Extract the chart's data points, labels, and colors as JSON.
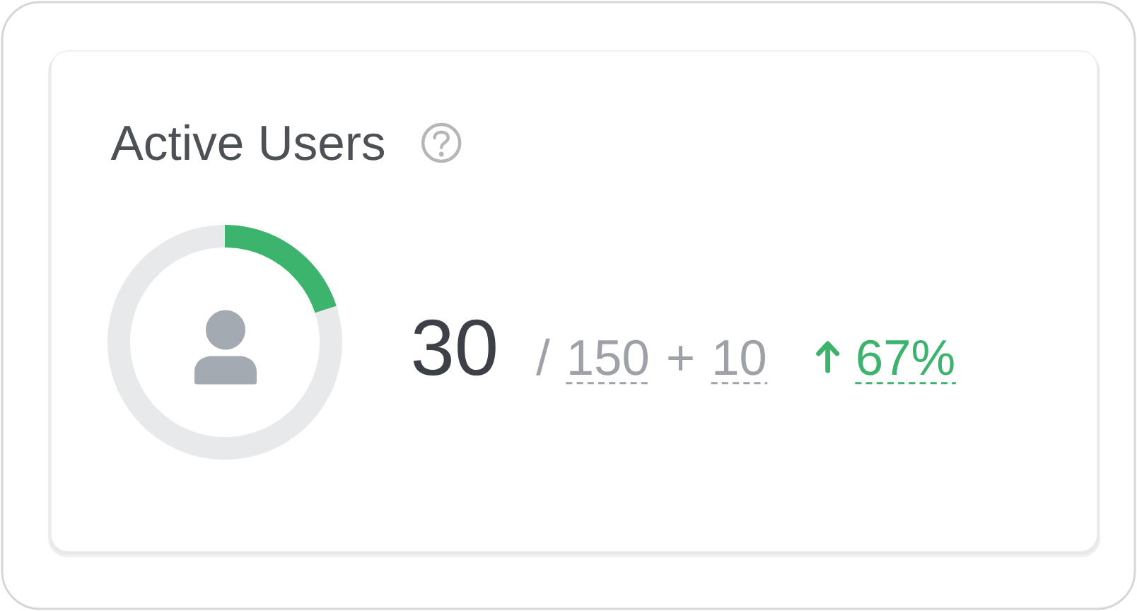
{
  "chart_data": {
    "type": "donut",
    "title": "Active Users",
    "categories": [
      null,
      null
    ],
    "values": [
      20,
      80
    ],
    "colors": [
      "#3db46d",
      "#e8e9eb"
    ],
    "annotations": [
      "30",
      "/",
      "150",
      "+",
      "10",
      "67%"
    ]
  }
}
